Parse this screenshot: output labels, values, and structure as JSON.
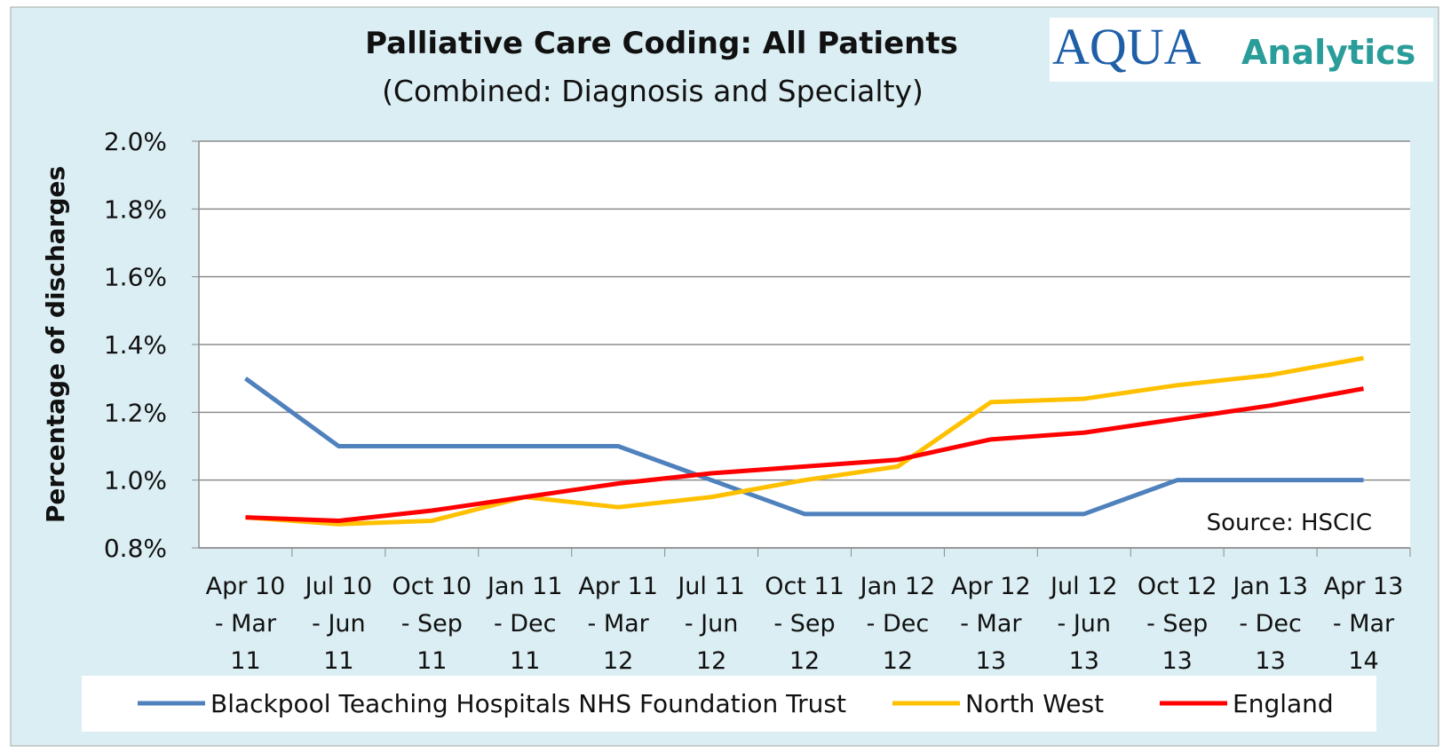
{
  "chart_data": {
    "type": "line",
    "title": "Palliative Care Coding: All Patients",
    "subtitle": "(Combined: Diagnosis and Specialty)",
    "logo": {
      "mark": "AQUA",
      "text": "Analytics"
    },
    "annotation": "Source: HSCIC",
    "ylabel": "Percentage of discharges",
    "categories": [
      "Apr 10 - Mar 11",
      "Jul 10 - Jun 11",
      "Oct 10 - Sep 11",
      "Jan 11 - Dec 11",
      "Apr 11 - Mar 12",
      "Jul 11 - Jun 12",
      "Oct 11 - Sep 12",
      "Jan 12 - Dec 12",
      "Apr 12 - Mar 13",
      "Jul 12 - Jun 13",
      "Oct 12 - Sep 13",
      "Jan 13 - Dec 13",
      "Apr 13 - Mar 14"
    ],
    "series": [
      {
        "name": "Blackpool Teaching Hospitals NHS Foundation Trust",
        "color": "#4f81bd",
        "values": [
          1.3,
          1.1,
          1.1,
          1.1,
          1.1,
          1.0,
          0.9,
          0.9,
          0.9,
          0.9,
          1.0,
          1.0,
          1.0
        ]
      },
      {
        "name": "North West",
        "color": "#ffc000",
        "values": [
          0.89,
          0.87,
          0.88,
          0.95,
          0.92,
          0.95,
          1.0,
          1.04,
          1.23,
          1.24,
          1.28,
          1.31,
          1.36
        ]
      },
      {
        "name": "England",
        "color": "#ff0000",
        "values": [
          0.89,
          0.88,
          0.91,
          0.95,
          0.99,
          1.02,
          1.04,
          1.06,
          1.12,
          1.14,
          1.18,
          1.22,
          1.27
        ]
      }
    ],
    "ylim": [
      0.8,
      2.0
    ],
    "yticks": [
      {
        "value": 0.8,
        "label": "0.8%"
      },
      {
        "value": 1.0,
        "label": "1.0%"
      },
      {
        "value": 1.2,
        "label": "1.2%"
      },
      {
        "value": 1.4,
        "label": "1.4%"
      },
      {
        "value": 1.6,
        "label": "1.6%"
      },
      {
        "value": 1.8,
        "label": "1.8%"
      },
      {
        "value": 2.0,
        "label": "2.0%"
      }
    ],
    "grid": true,
    "legend": "bottom"
  }
}
